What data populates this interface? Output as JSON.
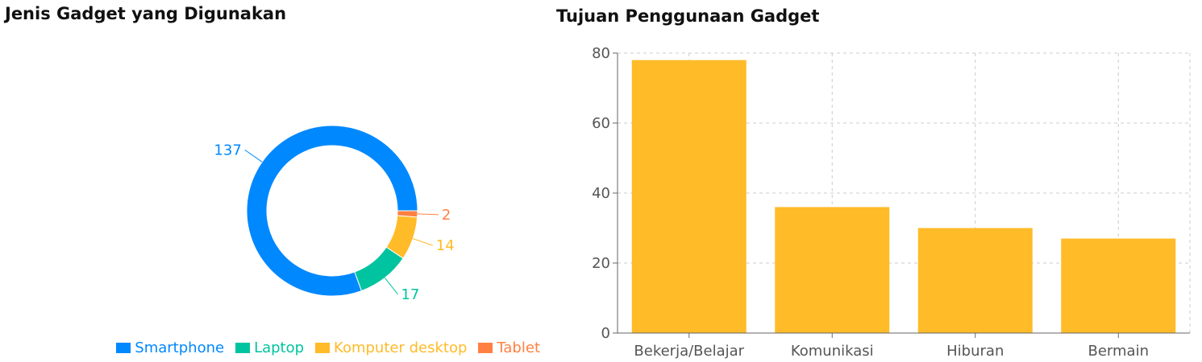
{
  "chart_data": [
    {
      "type": "pie",
      "variant": "donut",
      "title": "Jenis Gadget yang Digunakan",
      "series": [
        {
          "name": "Smartphone",
          "value": 137,
          "color": "#0088FE"
        },
        {
          "name": "Laptop",
          "value": 17,
          "color": "#00C49F"
        },
        {
          "name": "Komputer desktop",
          "value": 14,
          "color": "#FFBB28"
        },
        {
          "name": "Tablet",
          "value": 2,
          "color": "#FF8042"
        }
      ],
      "legend_position": "bottom-right"
    },
    {
      "type": "bar",
      "title": "Tujuan Penggunaan Gadget",
      "categories": [
        "Bekerja/Belajar",
        "Komunikasi",
        "Hiburan",
        "Bermain"
      ],
      "values": [
        78,
        36,
        30,
        27
      ],
      "color": "#FFBB28",
      "ylim": [
        0,
        80
      ],
      "yticks": [
        0,
        20,
        40,
        60,
        80
      ],
      "grid": true,
      "grid_style": "dashed"
    }
  ]
}
